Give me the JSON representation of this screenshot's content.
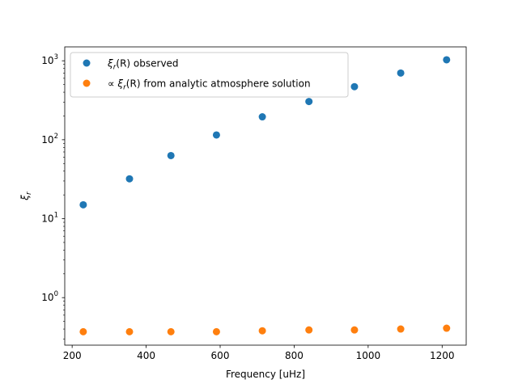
{
  "chart_data": {
    "type": "scatter",
    "title": "",
    "xlabel": "Frequency [uHz]",
    "ylabel": "ξr",
    "xlim": [
      180,
      1265
    ],
    "ylim": [
      0.25,
      1500
    ],
    "yscale": "log",
    "grid": false,
    "legend_position": "top-left",
    "x_ticks": [
      200,
      400,
      600,
      800,
      1000,
      1200
    ],
    "x_tick_labels": [
      "200",
      "400",
      "600",
      "800",
      "1000",
      "1200"
    ],
    "y_ticks": [
      1,
      10,
      100,
      1000
    ],
    "y_tick_labels": [
      {
        "base": "10",
        "exp": "0"
      },
      {
        "base": "10",
        "exp": "1"
      },
      {
        "base": "10",
        "exp": "2"
      },
      {
        "base": "10",
        "exp": "3"
      }
    ],
    "series": [
      {
        "name_parts": {
          "prefix": "",
          "var": "ξ",
          "sub": "r",
          "suffix": "(R) observed"
        },
        "color": "#1f77b4",
        "x": [
          230,
          355,
          467,
          590,
          714,
          840,
          963,
          1088,
          1212
        ],
        "y": [
          15,
          32,
          63,
          115,
          195,
          305,
          470,
          700,
          1030
        ]
      },
      {
        "name_parts": {
          "prefix": "∝ ",
          "var": "ξ",
          "sub": "r",
          "suffix": "(R) from analytic atmosphere solution"
        },
        "color": "#ff7f0e",
        "x": [
          230,
          355,
          467,
          590,
          714,
          840,
          963,
          1088,
          1212
        ],
        "y": [
          0.37,
          0.37,
          0.37,
          0.37,
          0.38,
          0.39,
          0.39,
          0.4,
          0.41
        ]
      }
    ]
  }
}
